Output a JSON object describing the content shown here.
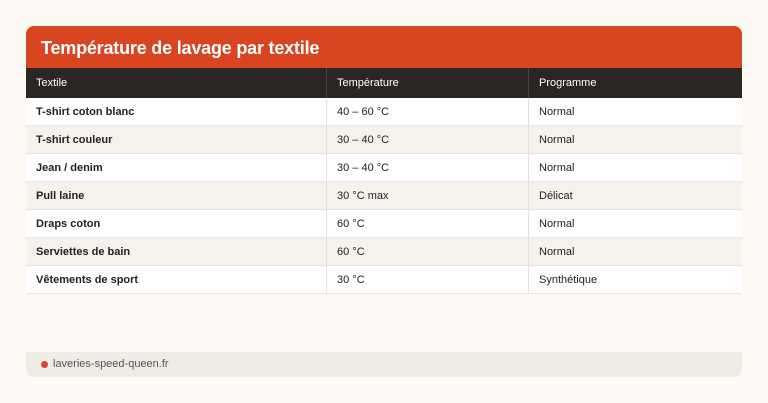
{
  "title": "Température de lavage par textile",
  "columns": [
    "Textile",
    "Température",
    "Programme"
  ],
  "rows": [
    [
      "T-shirt coton blanc",
      "40 – 60 °C",
      "Normal"
    ],
    [
      "T-shirt couleur",
      "30 – 40 °C",
      "Normal"
    ],
    [
      "Jean / denim",
      "30 – 40 °C",
      "Normal"
    ],
    [
      "Pull laine",
      "30 °C max",
      "Délicat"
    ],
    [
      "Draps coton",
      "60 °C",
      "Normal"
    ],
    [
      "Serviettes de bain",
      "60 °C",
      "Normal"
    ],
    [
      "Vêtements de sport",
      "30 °C",
      "Synthétique"
    ]
  ],
  "footer": {
    "source": "laveries-speed-queen.fr"
  },
  "colors": {
    "accent": "#d94520",
    "header": "#2a2623"
  }
}
